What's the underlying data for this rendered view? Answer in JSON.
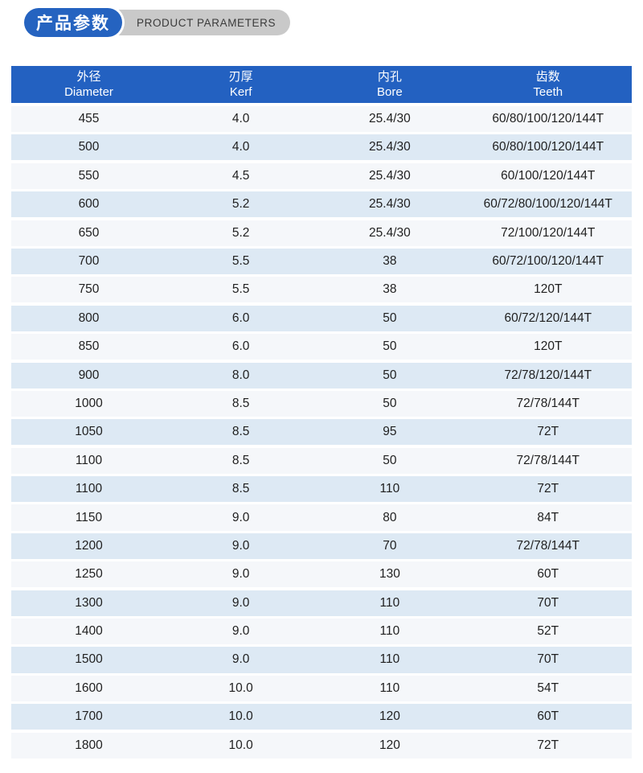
{
  "section_header": {
    "title_zh": "产品参数",
    "title_en": "PRODUCT PARAMETERS",
    "badge_bg": "#2563c0",
    "ribbon_bg": "#c9c9c9",
    "ribbon_text_color": "#3b3b3b"
  },
  "table": {
    "header_bg": "#2361c1",
    "row_bg": "#f5f7fa",
    "row_alt_bg": "#dde9f4",
    "columns": [
      {
        "zh": "外径",
        "en": "Diameter"
      },
      {
        "zh": "刃厚",
        "en": "Kerf"
      },
      {
        "zh": "内孔",
        "en": "Bore"
      },
      {
        "zh": "齿数",
        "en": "Teeth"
      }
    ],
    "rows": [
      [
        "455",
        "4.0",
        "25.4/30",
        "60/80/100/120/144T"
      ],
      [
        "500",
        "4.0",
        "25.4/30",
        "60/80/100/120/144T"
      ],
      [
        "550",
        "4.5",
        "25.4/30",
        "60/100/120/144T"
      ],
      [
        "600",
        "5.2",
        "25.4/30",
        "60/72/80/100/120/144T"
      ],
      [
        "650",
        "5.2",
        "25.4/30",
        "72/100/120/144T"
      ],
      [
        "700",
        "5.5",
        "38",
        "60/72/100/120/144T"
      ],
      [
        "750",
        "5.5",
        "38",
        "120T"
      ],
      [
        "800",
        "6.0",
        "50",
        "60/72/120/144T"
      ],
      [
        "850",
        "6.0",
        "50",
        "120T"
      ],
      [
        "900",
        "8.0",
        "50",
        "72/78/120/144T"
      ],
      [
        "1000",
        "8.5",
        "50",
        "72/78/144T"
      ],
      [
        "1050",
        "8.5",
        "95",
        "72T"
      ],
      [
        "1100",
        "8.5",
        "50",
        "72/78/144T"
      ],
      [
        "1100",
        "8.5",
        "110",
        "72T"
      ],
      [
        "1150",
        "9.0",
        "80",
        "84T"
      ],
      [
        "1200",
        "9.0",
        "70",
        "72/78/144T"
      ],
      [
        "1250",
        "9.0",
        "130",
        "60T"
      ],
      [
        "1300",
        "9.0",
        "110",
        "70T"
      ],
      [
        "1400",
        "9.0",
        "110",
        "52T"
      ],
      [
        "1500",
        "9.0",
        "110",
        "70T"
      ],
      [
        "1600",
        "10.0",
        "110",
        "54T"
      ],
      [
        "1700",
        "10.0",
        "120",
        "60T"
      ],
      [
        "1800",
        "10.0",
        "120",
        "72T"
      ]
    ]
  }
}
